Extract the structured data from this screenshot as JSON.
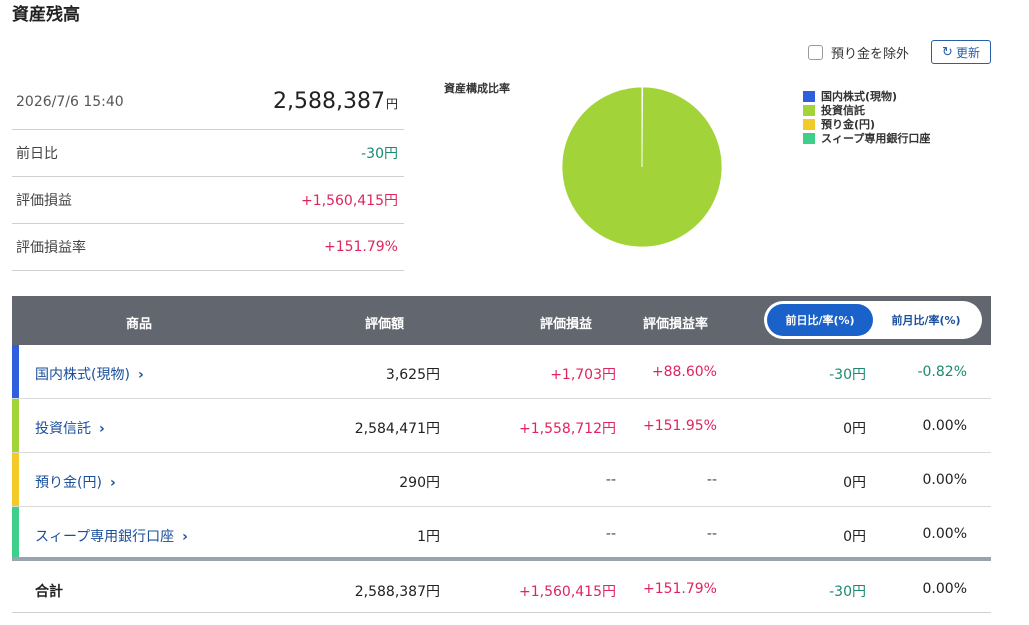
{
  "page_title": "資産残高",
  "summary": {
    "datetime": "2026/7/6 15:40",
    "total_value": "2,588,387",
    "total_unit": "円",
    "rows": [
      {
        "label": "前日比",
        "value": "-30円"
      },
      {
        "label": "評価損益",
        "value": "+1,560,415円"
      },
      {
        "label": "評価損益率",
        "value": "+151.79%"
      }
    ]
  },
  "controls": {
    "exclude_label": "預り金を除外",
    "refresh_label": "更新"
  },
  "chart_data": {
    "type": "pie",
    "title": "資産構成比率",
    "categories": [
      "国内株式(現物)",
      "投資信託",
      "預り金(円)",
      "スィープ専用銀行口座"
    ],
    "values": [
      3625,
      2584471,
      290,
      1
    ],
    "colors": [
      "#2f5fdc",
      "#a2d43a",
      "#f2cb2a",
      "#3ed08a"
    ],
    "legend_position": "right"
  },
  "table": {
    "headers": {
      "product": "商品",
      "valuation": "評価額",
      "gain": "評価損益",
      "gain_rate": "評価損益率"
    },
    "toggle": {
      "day": "前日比/率(%)",
      "month": "前月比/率(%)"
    },
    "rows": [
      {
        "name": "国内株式(現物)",
        "valuation": "3,625円",
        "gain": "+1,703円",
        "gain_rate": "+88.60%",
        "change": "-30円",
        "change_rate": "-0.82%",
        "color": "#2f5fdc"
      },
      {
        "name": "投資信託",
        "valuation": "2,584,471円",
        "gain": "+1,558,712円",
        "gain_rate": "+151.95%",
        "change": "0円",
        "change_rate": "0.00%",
        "color": "#a2d43a"
      },
      {
        "name": "預り金(円)",
        "valuation": "290円",
        "gain": "--",
        "gain_rate": "--",
        "change": "0円",
        "change_rate": "0.00%",
        "color": "#f2cb2a"
      },
      {
        "name": "スィープ専用銀行口座",
        "valuation": "1円",
        "gain": "--",
        "gain_rate": "--",
        "change": "0円",
        "change_rate": "0.00%",
        "color": "#3ed08a"
      }
    ],
    "total": {
      "label": "合計",
      "valuation": "2,588,387円",
      "gain": "+1,560,415円",
      "gain_rate": "+151.79%",
      "change": "-30円",
      "change_rate": "0.00%"
    }
  }
}
